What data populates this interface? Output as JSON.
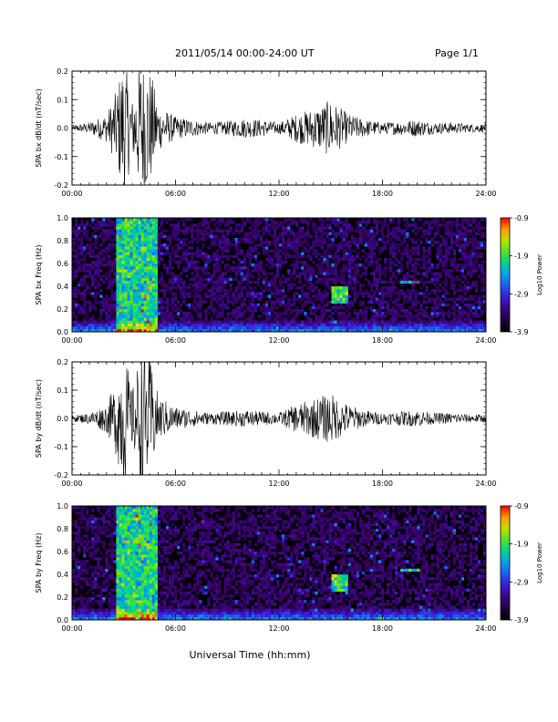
{
  "header": {
    "title": "2011/05/14  00:00-24:00 UT",
    "page": "Page 1/1"
  },
  "xaxis_label": "Universal Time (hh:mm)",
  "chart_data": [
    {
      "type": "line",
      "ylabel": "SPA bx dB/dt (nT/sec)",
      "ylim": [
        -0.2,
        0.2
      ],
      "yticks": [
        "0.2",
        "0.1",
        "0.0",
        "-0.1",
        "-0.2"
      ],
      "xlim_hours": [
        0,
        24
      ],
      "xticks": [
        "00:00",
        "06:00",
        "12:00",
        "18:00",
        "24:00"
      ],
      "color": "#000000",
      "envelope": {
        "x_hours": [
          0,
          1,
          2,
          2.5,
          3,
          3.5,
          4,
          4.5,
          5,
          6,
          7,
          8,
          9,
          10,
          11,
          12,
          13,
          14,
          15,
          16,
          17,
          18,
          19,
          20,
          21,
          22,
          23,
          24
        ],
        "amplitude": [
          0.01,
          0.02,
          0.05,
          0.12,
          0.25,
          0.1,
          0.25,
          0.22,
          0.08,
          0.04,
          0.03,
          0.02,
          0.025,
          0.035,
          0.03,
          0.02,
          0.05,
          0.07,
          0.1,
          0.05,
          0.03,
          0.02,
          0.025,
          0.03,
          0.02,
          0.02,
          0.015,
          0.015
        ]
      }
    },
    {
      "type": "heatmap",
      "ylabel": "SPA bx Freq (Hz)",
      "ylim": [
        0.0,
        1.0
      ],
      "yticks": [
        "1.0",
        "0.8",
        "0.6",
        "0.4",
        "0.2",
        "0.0"
      ],
      "xlim_hours": [
        0,
        24
      ],
      "xticks": [
        "00:00",
        "06:00",
        "12:00",
        "18:00",
        "24:00"
      ],
      "colorbar": {
        "label": "Log10 Power",
        "range": [
          -3.9,
          -0.9
        ],
        "ticks": [
          "-0.9",
          "-1.9",
          "-2.9",
          "-3.9"
        ]
      },
      "features": [
        {
          "x_hours": [
            2.5,
            5.0
          ],
          "freq": [
            0.0,
            1.0
          ],
          "level": 0.55
        },
        {
          "x_hours": [
            15.0,
            16.0
          ],
          "freq": [
            0.25,
            0.4
          ],
          "level": 0.6
        },
        {
          "x_hours": [
            19.0,
            20.2
          ],
          "freq": [
            0.42,
            0.46
          ],
          "level": 0.5
        }
      ]
    },
    {
      "type": "line",
      "ylabel": "SPA by dB/dt (nT/sec)",
      "ylim": [
        -0.2,
        0.2
      ],
      "yticks": [
        "0.2",
        "0.1",
        "0.0",
        "-0.1",
        "-0.2"
      ],
      "xlim_hours": [
        0,
        24
      ],
      "xticks": [
        "00:00",
        "06:00",
        "12:00",
        "18:00",
        "24:00"
      ],
      "color": "#000000",
      "envelope": {
        "x_hours": [
          0,
          1,
          2,
          2.5,
          3,
          3.5,
          4,
          4.5,
          5,
          6,
          7,
          8,
          9,
          10,
          11,
          12,
          13,
          14,
          15,
          16,
          17,
          18,
          19,
          20,
          21,
          22,
          23,
          24
        ],
        "amplitude": [
          0.01,
          0.02,
          0.05,
          0.12,
          0.25,
          0.1,
          0.25,
          0.22,
          0.08,
          0.04,
          0.03,
          0.02,
          0.025,
          0.03,
          0.025,
          0.02,
          0.05,
          0.07,
          0.09,
          0.05,
          0.03,
          0.02,
          0.025,
          0.03,
          0.02,
          0.02,
          0.015,
          0.015
        ]
      }
    },
    {
      "type": "heatmap",
      "ylabel": "SPA by Freq (Hz)",
      "ylim": [
        0.0,
        1.0
      ],
      "yticks": [
        "1.0",
        "0.8",
        "0.6",
        "0.4",
        "0.2",
        "0.0"
      ],
      "xlim_hours": [
        0,
        24
      ],
      "xticks": [
        "00:00",
        "06:00",
        "12:00",
        "18:00",
        "24:00"
      ],
      "colorbar": {
        "label": "Log10 Power",
        "range": [
          -3.9,
          -0.9
        ],
        "ticks": [
          "-0.9",
          "-1.9",
          "-2.9",
          "-3.9"
        ]
      },
      "features": [
        {
          "x_hours": [
            2.5,
            5.0
          ],
          "freq": [
            0.0,
            1.0
          ],
          "level": 0.55
        },
        {
          "x_hours": [
            15.0,
            16.0
          ],
          "freq": [
            0.25,
            0.4
          ],
          "level": 0.6
        },
        {
          "x_hours": [
            19.0,
            20.2
          ],
          "freq": [
            0.42,
            0.46
          ],
          "level": 0.5
        }
      ]
    }
  ]
}
